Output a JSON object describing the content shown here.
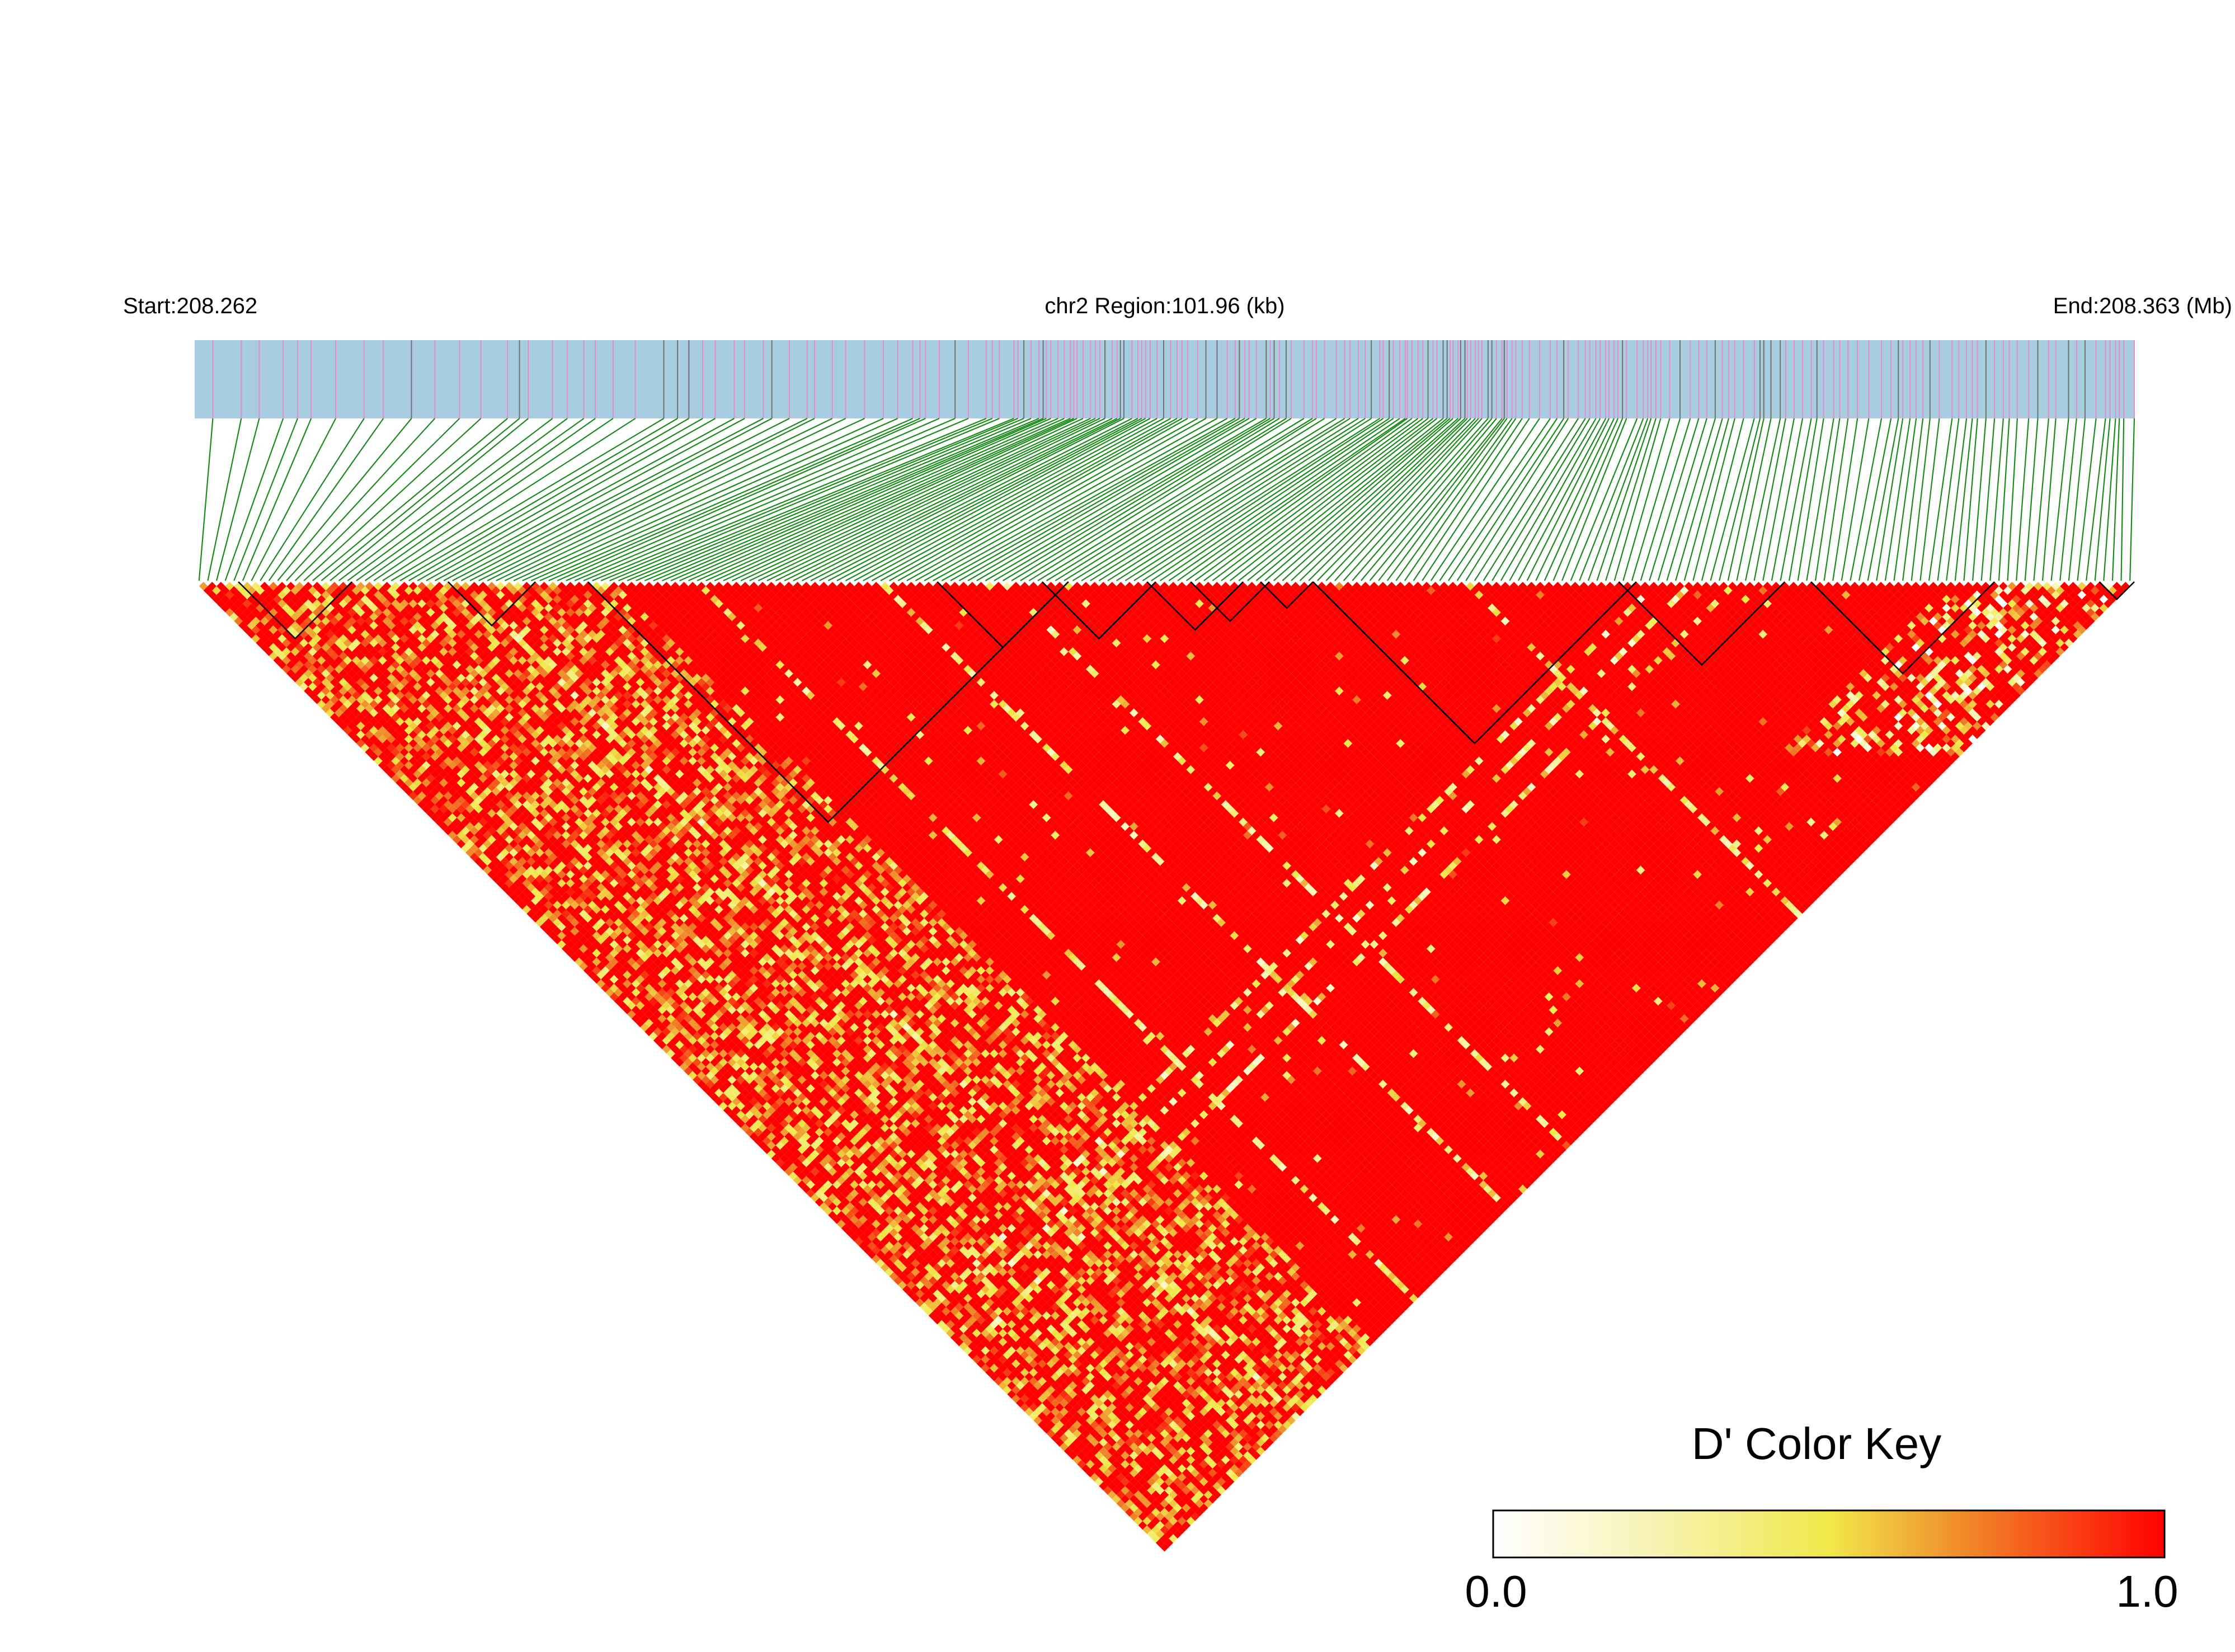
{
  "header": {
    "start_label": "Start:208.262",
    "region_label": "chr2 Region:101.96 (kb)",
    "end_label": "End:208.363 (Mb)"
  },
  "legend": {
    "title": "D' Color Key",
    "min_label": "0.0",
    "max_label": "1.0",
    "placement": "bottom-right"
  },
  "colors": {
    "track_background": "#a8cde0",
    "snp_tick_primary": "#e58ccf",
    "snp_tick_secondary": "#707070",
    "connector": "#1a8a1a",
    "high_ld": "#ff0000",
    "low_ld": "#ffffff",
    "block_outline": "#000000"
  },
  "chart_data": {
    "type": "heatmap",
    "subtype": "linkage-disequilibrium-triangle",
    "chromosome": "chr2",
    "region_start_mb": 208.262,
    "region_end_mb": 208.363,
    "region_length_kb": 101.96,
    "metric": "D'",
    "value_range": [
      0.0,
      1.0
    ],
    "colorscale": [
      "#ffffff",
      "#f1e84a",
      "#f08a2a",
      "#ff0000"
    ],
    "snp_count": 222,
    "haplotype_blocks_snp_index": [
      [
        5,
        17
      ],
      [
        29,
        38
      ],
      [
        45,
        99
      ],
      [
        85,
        99
      ],
      [
        97,
        109
      ],
      [
        109,
        119
      ],
      [
        114,
        122
      ],
      [
        122,
        127
      ],
      [
        128,
        164
      ],
      [
        163,
        181
      ],
      [
        185,
        205
      ],
      [
        218,
        221
      ]
    ]
  }
}
